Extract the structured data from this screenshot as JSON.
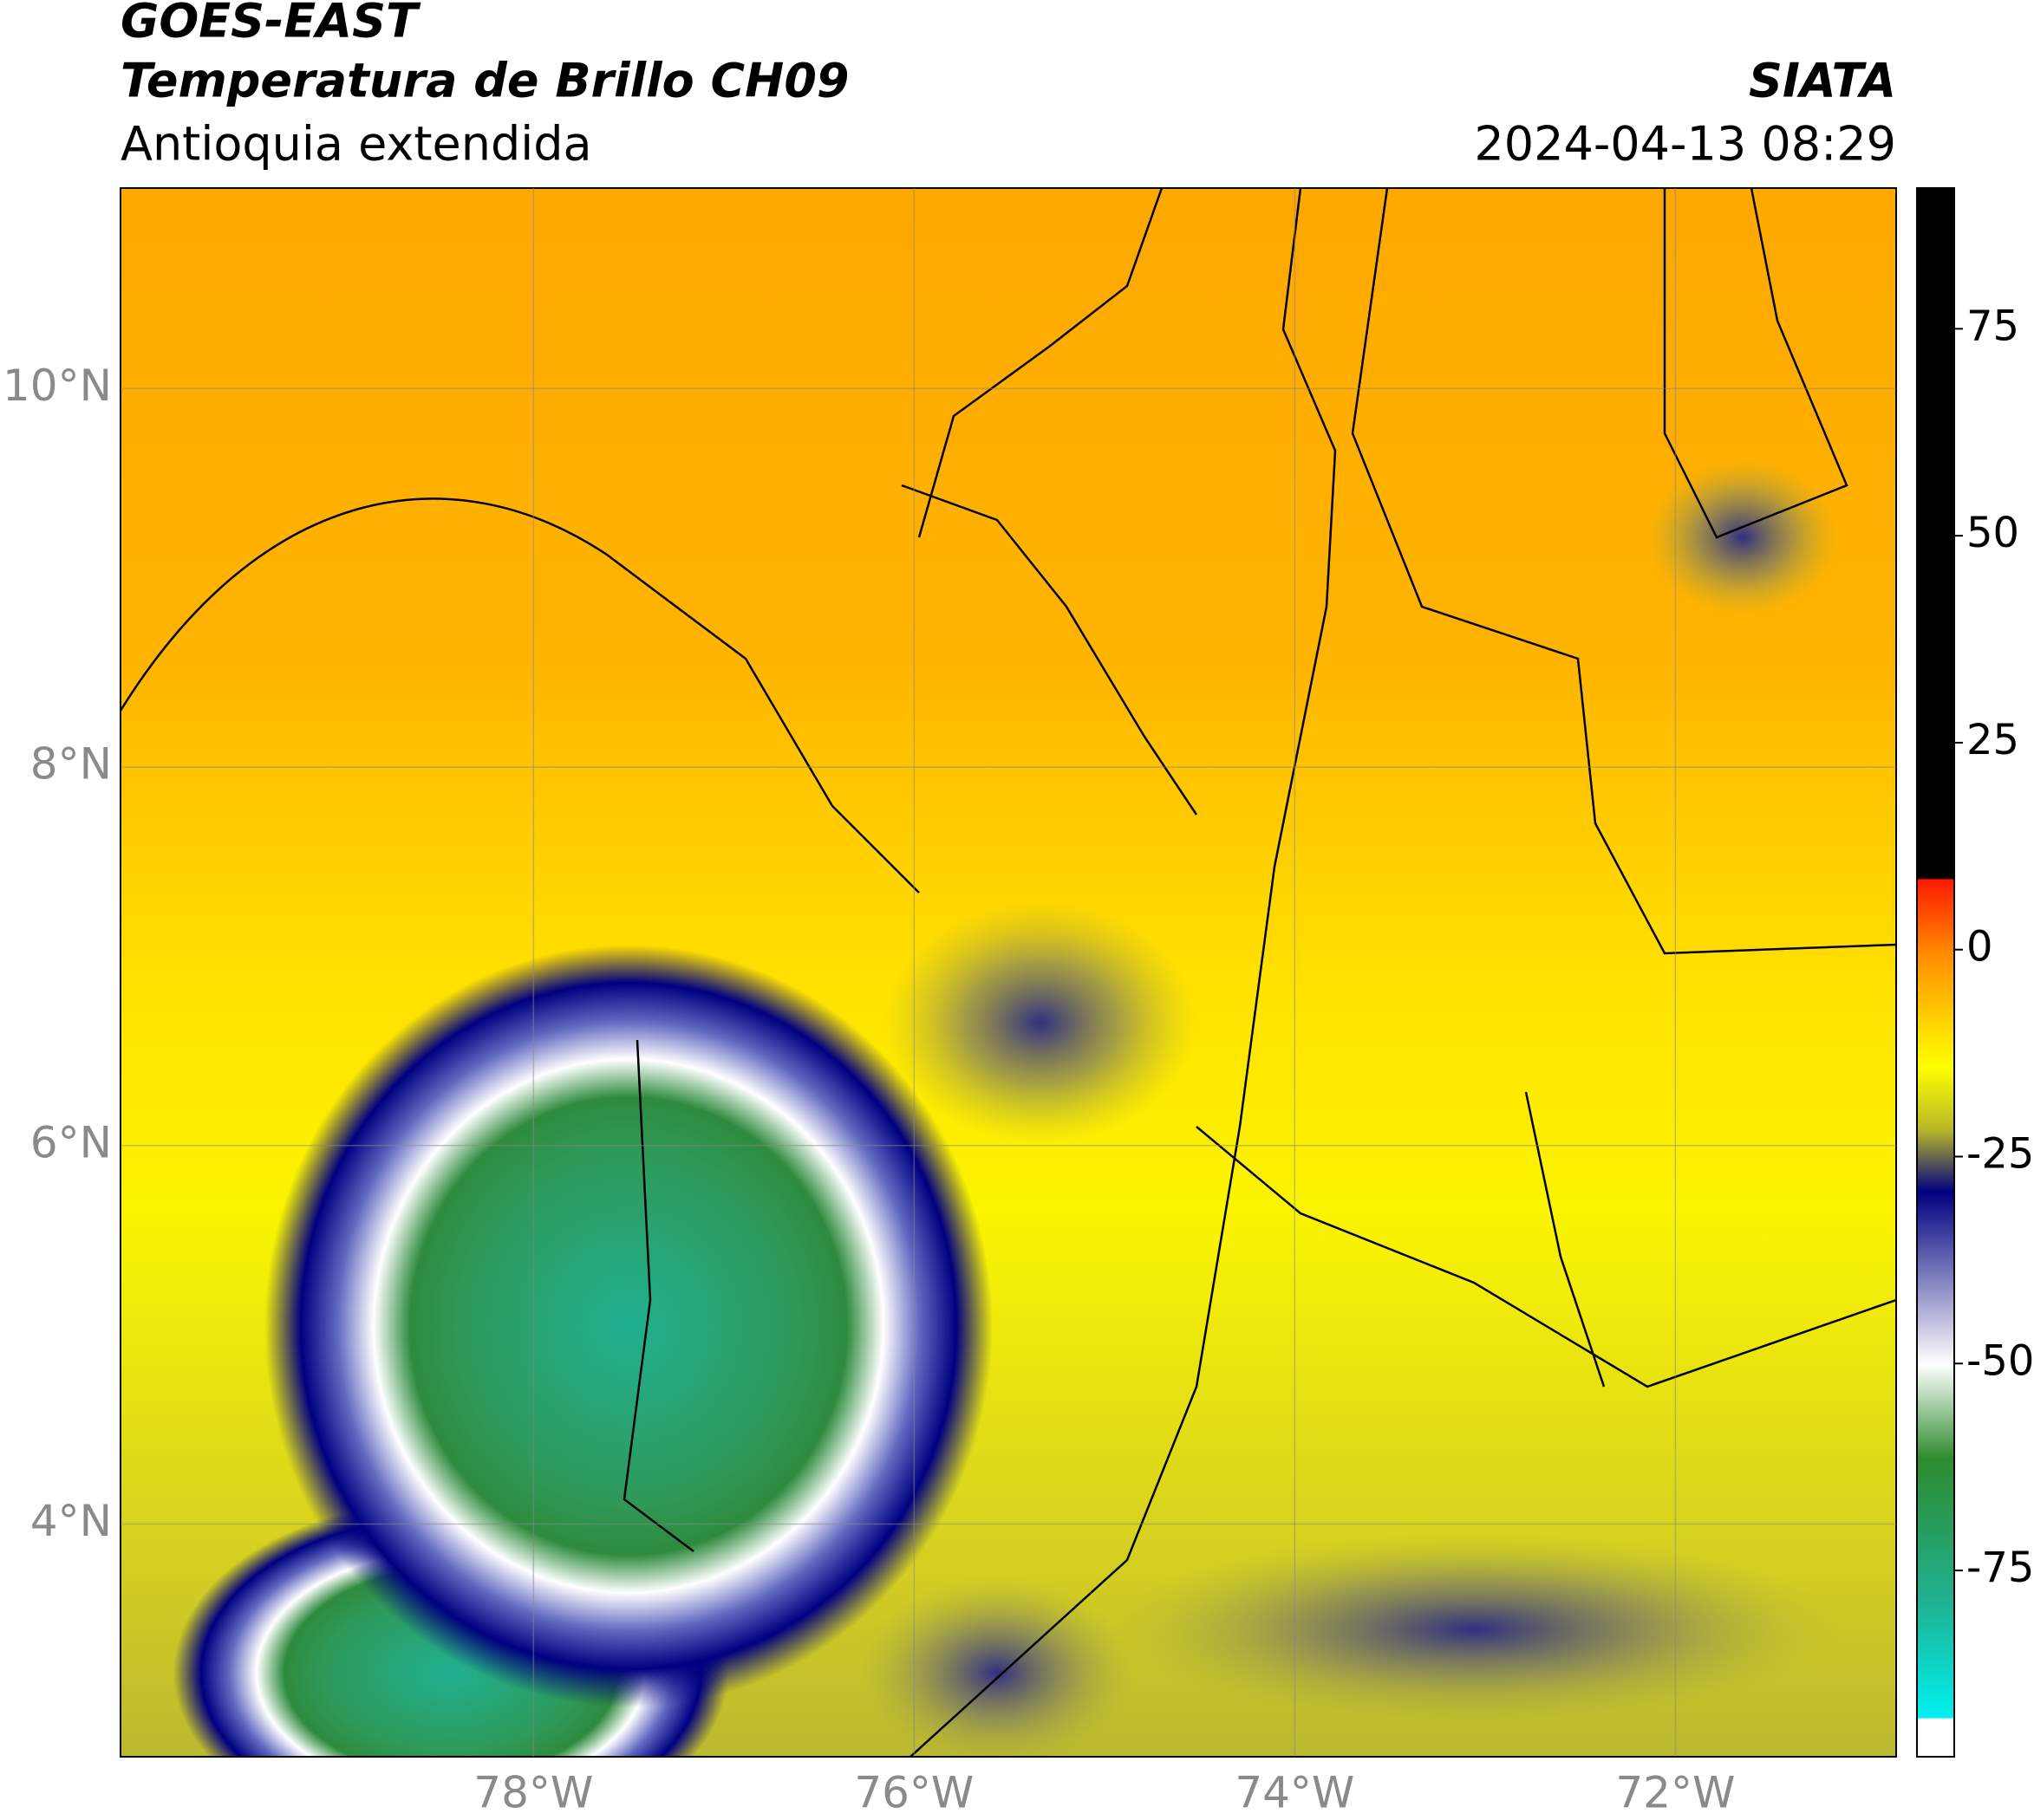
{
  "header": {
    "satellite": "GOES-EAST",
    "product": "Temperatura de Brillo CH09",
    "region": "Antioquia extendida",
    "source": "SIATA",
    "datetime": "2024-04-13 08:29"
  },
  "map": {
    "xlim": [
      -80.17,
      -70.84
    ],
    "ylim": [
      2.77,
      11.06
    ],
    "xticks": [
      {
        "value": -78,
        "label": "78°W"
      },
      {
        "value": -76,
        "label": "76°W"
      },
      {
        "value": -74,
        "label": "74°W"
      },
      {
        "value": -72,
        "label": "72°W"
      }
    ],
    "yticks": [
      {
        "value": 10,
        "label": "10°N"
      },
      {
        "value": 8,
        "label": "8°N"
      },
      {
        "value": 6,
        "label": "6°N"
      },
      {
        "value": 4,
        "label": "4°N"
      }
    ],
    "grid": true
  },
  "colorbar": {
    "ylim": [
      -97.5,
      92
    ],
    "yticks": [
      75,
      50,
      25,
      0,
      -25,
      -50,
      -75
    ]
  }
}
